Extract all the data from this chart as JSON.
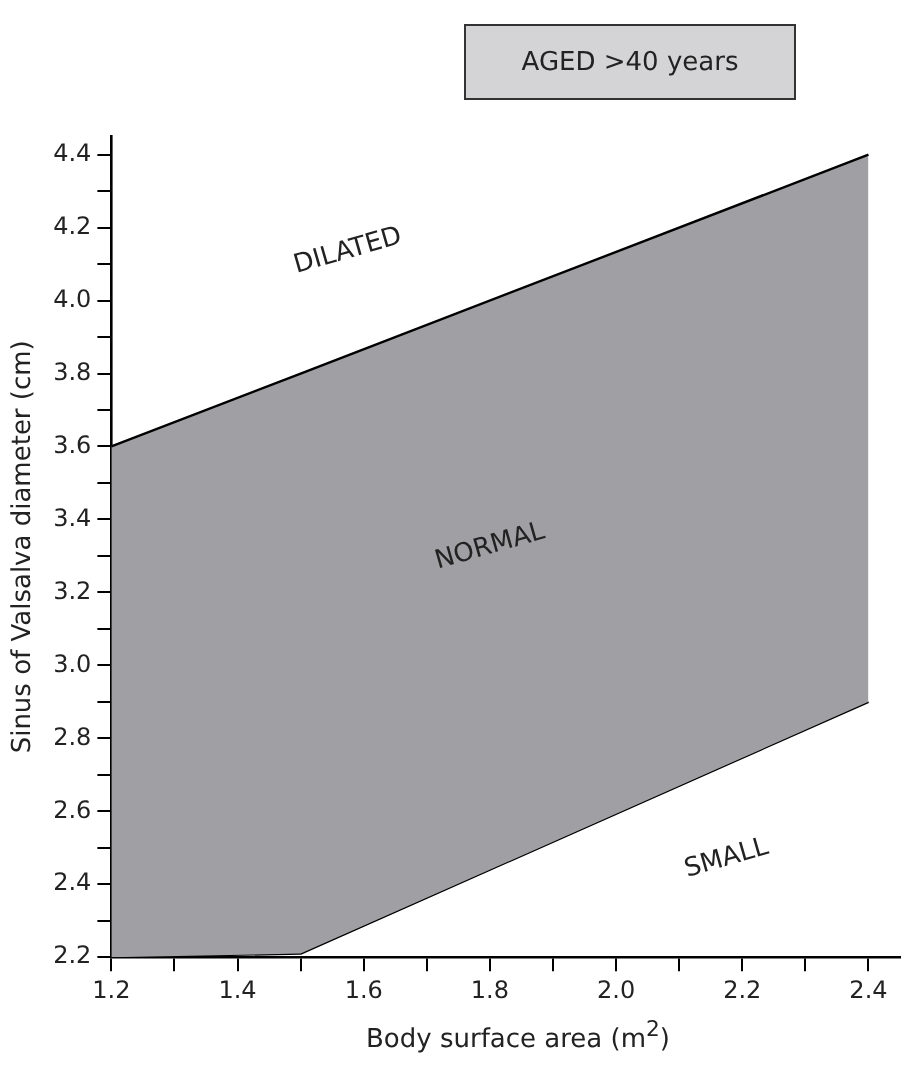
{
  "chart_data": {
    "type": "area",
    "title": "AGED >40 years",
    "xlabel": "Body surface area (m$^{2}$)",
    "ylabel": "Sinus of Valsalva diameter (cm)",
    "x": [
      1.2,
      1.5,
      2.4
    ],
    "series": [
      {
        "color": "#a0a0a4",
        "values": [
          3.6,
          3.8,
          4.4
        ]
      },
      {
        "type": "line",
        "color": "#000000",
        "values": [
          2.2,
          2.21,
          2.9
        ]
      }
    ],
    "xlim": [
      1.2,
      2.45
    ],
    "ylim": [
      2.2,
      4.45
    ],
    "xticks": [
      1.2,
      {
        "value": 1.3,
        "label": null
      },
      1.4,
      {
        "value": 1.5,
        "label": null
      },
      1.6,
      {
        "value": 1.7,
        "label": null
      },
      1.8,
      {
        "value": 1.9,
        "label": null
      },
      {
        "value": 2,
        "label": "2.0"
      },
      {
        "value": 2.1,
        "label": null
      },
      2.2,
      {
        "value": 2.3,
        "label": null
      },
      2.4
    ],
    "yticks": [
      2.2,
      {
        "value": 2.3,
        "label": null
      },
      2.4,
      {
        "value": 2.5,
        "label": null
      },
      2.6,
      {
        "value": 2.7,
        "label": null
      },
      2.8,
      {
        "value": 2.9,
        "label": null
      },
      {
        "value": 3,
        "label": "3.0"
      },
      {
        "value": 3.1,
        "label": null
      },
      3.2,
      {
        "value": 3.3,
        "label": null
      },
      3.4,
      {
        "value": 3.5,
        "label": null
      },
      3.6,
      {
        "value": 3.7,
        "label": null
      },
      3.8,
      {
        "value": 3.9,
        "label": null
      },
      {
        "value": 4,
        "label": "4.0"
      },
      {
        "value": 4.1,
        "label": null
      },
      4.2,
      {
        "value": 4.3,
        "label": null
      },
      4.4
    ],
    "annotations": [
      "DILATED",
      "NORMAL",
      "SMALL"
    ],
    "grid": false,
    "legend": false,
    "marker": "none",
    "line_style": "solid"
  }
}
